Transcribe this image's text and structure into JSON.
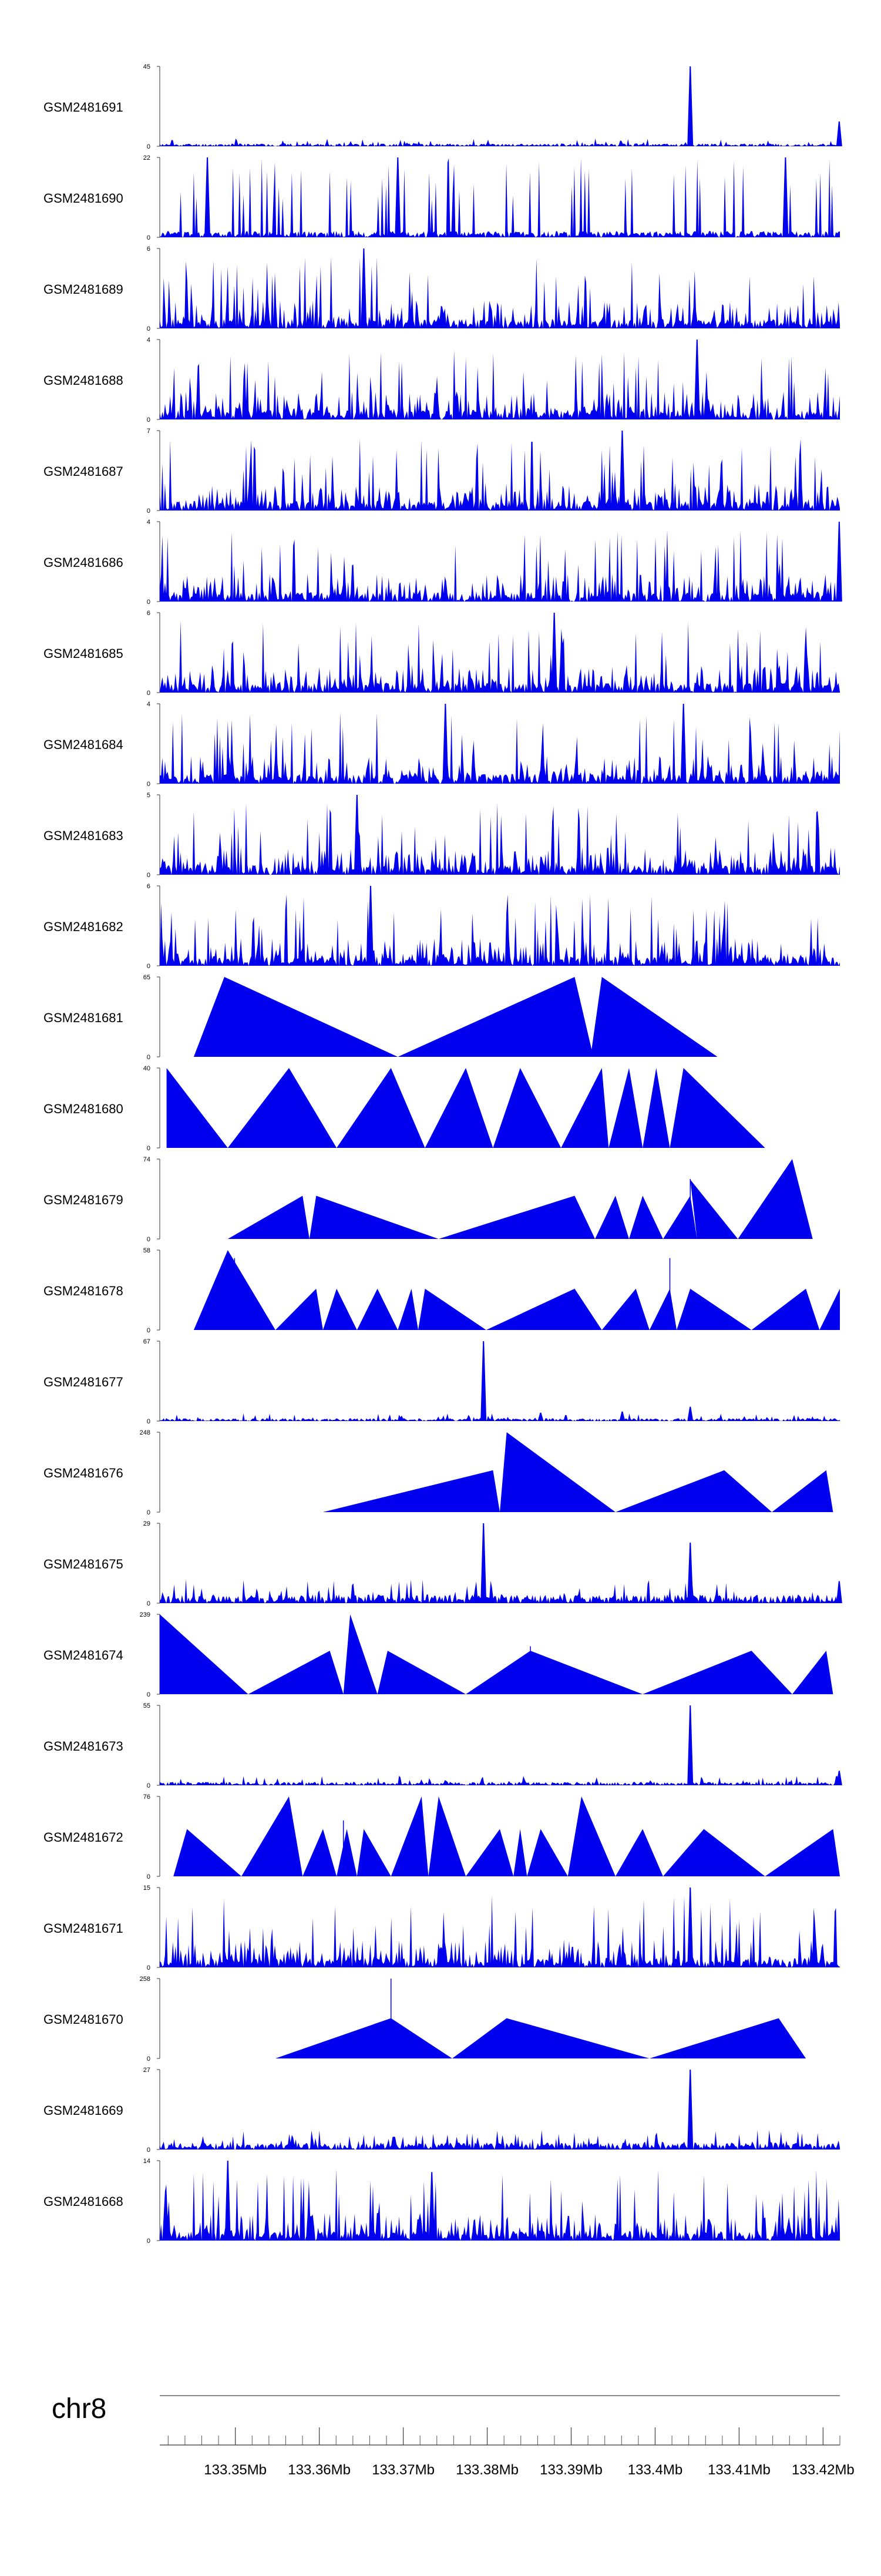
{
  "chart_data": {
    "type": "area",
    "title": "",
    "chromosome": "chr8",
    "xlabel": "",
    "ylabel": "",
    "xlim": [
      133.341,
      133.422
    ],
    "x_ticks": [
      133.35,
      133.36,
      133.37,
      133.38,
      133.39,
      133.4,
      133.41,
      133.42
    ],
    "x_tick_labels": [
      "133.35Mb",
      "133.36Mb",
      "133.37Mb",
      "133.38Mb",
      "133.39Mb",
      "133.4Mb",
      "133.41Mb",
      "133.42Mb"
    ],
    "tracks": [
      {
        "name": "GSM2481691",
        "ymax": 45,
        "style": "noise",
        "base": 2,
        "spikes": [
          [
            0.78,
            45
          ],
          [
            0.999,
            14
          ]
        ],
        "seed": 11
      },
      {
        "name": "GSM2481690",
        "ymax": 22,
        "style": "dense_tri",
        "spikes": [
          [
            0.07,
            22
          ],
          [
            0.35,
            22
          ],
          [
            0.92,
            22
          ]
        ],
        "seed": 12
      },
      {
        "name": "GSM2481689",
        "ymax": 6,
        "style": "dense",
        "spikes": [
          [
            0.3,
            6
          ]
        ],
        "seed": 13
      },
      {
        "name": "GSM2481688",
        "ymax": 4,
        "style": "dense",
        "spikes": [
          [
            0.79,
            4
          ]
        ],
        "seed": 14
      },
      {
        "name": "GSM2481687",
        "ymax": 7,
        "style": "dense",
        "spikes": [
          [
            0.68,
            7
          ]
        ],
        "seed": 15
      },
      {
        "name": "GSM2481686",
        "ymax": 4,
        "style": "dense",
        "spikes": [
          [
            0.999,
            4
          ]
        ],
        "seed": 16
      },
      {
        "name": "GSM2481685",
        "ymax": 6,
        "style": "dense",
        "spikes": [
          [
            0.58,
            6
          ]
        ],
        "seed": 17
      },
      {
        "name": "GSM2481684",
        "ymax": 4,
        "style": "dense",
        "spikes": [
          [
            0.42,
            4
          ],
          [
            0.77,
            4
          ]
        ],
        "seed": 18
      },
      {
        "name": "GSM2481683",
        "ymax": 5,
        "style": "dense",
        "spikes": [
          [
            0.29,
            5
          ]
        ],
        "seed": 19
      },
      {
        "name": "GSM2481682",
        "ymax": 6,
        "style": "dense",
        "spikes": [
          [
            0.31,
            6
          ]
        ],
        "seed": 20
      },
      {
        "name": "GSM2481681",
        "ymax": 65,
        "style": "triangles",
        "points": [
          [
            0.05,
            0
          ],
          [
            0.095,
            65
          ],
          [
            0.35,
            0
          ],
          [
            0.61,
            65
          ],
          [
            0.635,
            6
          ],
          [
            0.65,
            65
          ],
          [
            0.82,
            0
          ]
        ],
        "needles": [
          [
            0.095,
            0.82
          ]
        ]
      },
      {
        "name": "GSM2481680",
        "ymax": 40,
        "style": "triangles",
        "points": [
          [
            0.01,
            40
          ],
          [
            0.1,
            0
          ],
          [
            0.19,
            40
          ],
          [
            0.26,
            0
          ],
          [
            0.34,
            40
          ],
          [
            0.39,
            0
          ],
          [
            0.45,
            40
          ],
          [
            0.49,
            0
          ],
          [
            0.53,
            40
          ],
          [
            0.59,
            0
          ],
          [
            0.65,
            40
          ],
          [
            0.66,
            0
          ],
          [
            0.69,
            40
          ],
          [
            0.71,
            0
          ],
          [
            0.73,
            40
          ],
          [
            0.75,
            0
          ],
          [
            0.77,
            40
          ],
          [
            0.89,
            0
          ]
        ],
        "needles": [
          [
            0.46,
            0.7
          ],
          [
            0.54,
            0.6
          ]
        ]
      },
      {
        "name": "GSM2481679",
        "ymax": 74,
        "style": "triangles",
        "points": [
          [
            0.1,
            0
          ],
          [
            0.21,
            40
          ],
          [
            0.22,
            0
          ],
          [
            0.23,
            40
          ],
          [
            0.41,
            0
          ],
          [
            0.61,
            40
          ],
          [
            0.64,
            0
          ],
          [
            0.67,
            40
          ],
          [
            0.69,
            0
          ],
          [
            0.71,
            40
          ],
          [
            0.74,
            0
          ],
          [
            0.78,
            40
          ],
          [
            0.79,
            0
          ],
          [
            0.78,
            55
          ],
          [
            0.85,
            0
          ],
          [
            0.93,
            74
          ],
          [
            0.96,
            0
          ]
        ],
        "needles": [
          [
            0.78,
            0.75
          ]
        ]
      },
      {
        "name": "GSM2481678",
        "ymax": 58,
        "style": "triangles",
        "points": [
          [
            0.05,
            0
          ],
          [
            0.1,
            58
          ],
          [
            0.17,
            0
          ],
          [
            0.23,
            30
          ],
          [
            0.24,
            0
          ],
          [
            0.26,
            30
          ],
          [
            0.29,
            0
          ],
          [
            0.32,
            30
          ],
          [
            0.35,
            0
          ],
          [
            0.37,
            30
          ],
          [
            0.38,
            0
          ],
          [
            0.39,
            30
          ],
          [
            0.48,
            0
          ],
          [
            0.61,
            30
          ],
          [
            0.65,
            0
          ],
          [
            0.7,
            30
          ],
          [
            0.72,
            0
          ],
          [
            0.75,
            30
          ],
          [
            0.76,
            0
          ],
          [
            0.78,
            30
          ],
          [
            0.87,
            0
          ],
          [
            0.95,
            30
          ],
          [
            0.97,
            0
          ],
          [
            1.0,
            30
          ]
        ],
        "needles": [
          [
            0.75,
            0.9
          ],
          [
            0.11,
            0.9
          ]
        ]
      },
      {
        "name": "GSM2481677",
        "ymax": 67,
        "style": "noise",
        "base": 3,
        "spikes": [
          [
            0.476,
            67
          ],
          [
            0.78,
            12
          ],
          [
            0.56,
            7
          ],
          [
            0.68,
            8
          ]
        ],
        "seed": 21
      },
      {
        "name": "GSM2481676",
        "ymax": 248,
        "style": "triangles",
        "points": [
          [
            0.24,
            0
          ],
          [
            0.49,
            130
          ],
          [
            0.5,
            0
          ],
          [
            0.51,
            248
          ],
          [
            0.67,
            0
          ],
          [
            0.83,
            130
          ],
          [
            0.9,
            0
          ],
          [
            0.98,
            130
          ],
          [
            0.99,
            0
          ]
        ],
        "needles": []
      },
      {
        "name": "GSM2481675",
        "ymax": 29,
        "style": "noise",
        "base": 4,
        "spikes": [
          [
            0.476,
            29
          ],
          [
            0.78,
            22
          ],
          [
            0.999,
            8
          ]
        ],
        "seed": 22
      },
      {
        "name": "GSM2481674",
        "ymax": 239,
        "style": "triangles",
        "points": [
          [
            0.0,
            239
          ],
          [
            0.13,
            0
          ],
          [
            0.25,
            130
          ],
          [
            0.27,
            0
          ],
          [
            0.28,
            239
          ],
          [
            0.32,
            0
          ],
          [
            0.335,
            130
          ],
          [
            0.45,
            0
          ],
          [
            0.545,
            130
          ],
          [
            0.71,
            0
          ],
          [
            0.87,
            130
          ],
          [
            0.93,
            0
          ],
          [
            0.98,
            130
          ],
          [
            0.99,
            0
          ]
        ],
        "needles": [
          [
            0.545,
            0.6
          ]
        ]
      },
      {
        "name": "GSM2481673",
        "ymax": 55,
        "style": "noise",
        "base": 3,
        "spikes": [
          [
            0.78,
            55
          ],
          [
            0.999,
            10
          ]
        ],
        "seed": 23
      },
      {
        "name": "GSM2481672",
        "ymax": 76,
        "style": "triangles",
        "points": [
          [
            0.02,
            0
          ],
          [
            0.04,
            45
          ],
          [
            0.12,
            0
          ],
          [
            0.19,
            76
          ],
          [
            0.21,
            0
          ],
          [
            0.24,
            45
          ],
          [
            0.26,
            0
          ],
          [
            0.275,
            45
          ],
          [
            0.29,
            0
          ],
          [
            0.3,
            45
          ],
          [
            0.34,
            0
          ],
          [
            0.385,
            76
          ],
          [
            0.395,
            0
          ],
          [
            0.41,
            76
          ],
          [
            0.45,
            0
          ],
          [
            0.5,
            45
          ],
          [
            0.52,
            0
          ],
          [
            0.53,
            45
          ],
          [
            0.54,
            0
          ],
          [
            0.56,
            45
          ],
          [
            0.6,
            0
          ],
          [
            0.62,
            76
          ],
          [
            0.67,
            0
          ],
          [
            0.71,
            45
          ],
          [
            0.74,
            0
          ],
          [
            0.8,
            45
          ],
          [
            0.89,
            0
          ],
          [
            0.99,
            45
          ],
          [
            1.0,
            0
          ]
        ],
        "needles": [
          [
            0.19,
            0.9
          ],
          [
            0.27,
            0.7
          ]
        ]
      },
      {
        "name": "GSM2481671",
        "ymax": 15,
        "style": "dense",
        "spikes": [
          [
            0.78,
            15
          ]
        ],
        "seed": 24
      },
      {
        "name": "GSM2481670",
        "ymax": 258,
        "style": "triangles",
        "points": [
          [
            0.17,
            0
          ],
          [
            0.34,
            130
          ],
          [
            0.43,
            0
          ],
          [
            0.51,
            130
          ],
          [
            0.72,
            0
          ],
          [
            0.91,
            130
          ],
          [
            0.95,
            0
          ]
        ],
        "needles": [
          [
            0.34,
            1.0
          ]
        ]
      },
      {
        "name": "GSM2481669",
        "ymax": 27,
        "style": "noise",
        "base": 3,
        "spikes": [
          [
            0.78,
            27
          ]
        ],
        "seed": 25
      },
      {
        "name": "GSM2481668",
        "ymax": 14,
        "style": "dense",
        "spikes": [
          [
            0.1,
            14
          ],
          [
            0.4,
            12
          ]
        ],
        "seed": 26
      }
    ]
  },
  "colors": {
    "track_fill": "#0000ee",
    "axis": "#555555",
    "text": "#000000"
  }
}
